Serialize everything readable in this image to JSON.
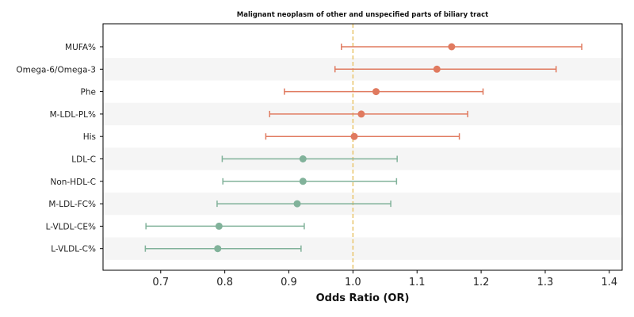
{
  "chart_data": {
    "type": "forest",
    "title": "Malignant neoplasm of other and unspecified parts of biliary tract",
    "xlabel": "Odds Ratio (OR)",
    "ylabel": "",
    "xlim": [
      0.61,
      1.42
    ],
    "x_ticks": [
      0.7,
      0.8,
      0.9,
      1.0,
      1.1,
      1.2,
      1.3,
      1.4
    ],
    "x_tick_labels": [
      "0.7",
      "0.8",
      "0.9",
      "1.0",
      "1.1",
      "1.2",
      "1.3",
      "1.4"
    ],
    "reference_line": 1.0,
    "row_banding": true,
    "colors": {
      "increased": "#e07a5f",
      "decreased": "#81b29a",
      "reference": "#e9c46a",
      "band": "#f5f5f5",
      "axis": "#000000"
    },
    "rows": [
      {
        "label": "MUFA%",
        "or": 1.154,
        "lower": 0.982,
        "upper": 1.357,
        "direction": "increased"
      },
      {
        "label": "Omega-6/Omega-3",
        "or": 1.131,
        "lower": 0.972,
        "upper": 1.317,
        "direction": "increased"
      },
      {
        "label": "Phe",
        "or": 1.036,
        "lower": 0.893,
        "upper": 1.203,
        "direction": "increased"
      },
      {
        "label": "M-LDL-PL%",
        "or": 1.013,
        "lower": 0.87,
        "upper": 1.179,
        "direction": "increased"
      },
      {
        "label": "His",
        "or": 1.002,
        "lower": 0.864,
        "upper": 1.166,
        "direction": "increased"
      },
      {
        "label": "LDL-C",
        "or": 0.922,
        "lower": 0.796,
        "upper": 1.069,
        "direction": "decreased"
      },
      {
        "label": "Non-HDL-C",
        "or": 0.922,
        "lower": 0.797,
        "upper": 1.068,
        "direction": "decreased"
      },
      {
        "label": "M-LDL-FC%",
        "or": 0.913,
        "lower": 0.788,
        "upper": 1.059,
        "direction": "decreased"
      },
      {
        "label": "L-VLDL-CE%",
        "or": 0.791,
        "lower": 0.677,
        "upper": 0.924,
        "direction": "decreased"
      },
      {
        "label": "L-VLDL-C%",
        "or": 0.789,
        "lower": 0.676,
        "upper": 0.919,
        "direction": "decreased"
      }
    ]
  }
}
